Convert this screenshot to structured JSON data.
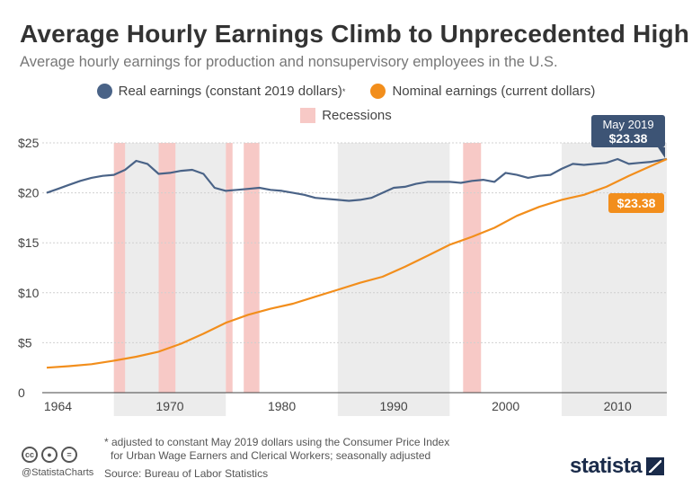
{
  "header": {
    "title": "Average Hourly Earnings Climb to Unprecedented High",
    "subtitle": "Average hourly earnings for production and nonsupervisory employees in the U.S."
  },
  "legend": {
    "real_label": "Real earnings (constant 2019 dollars)",
    "real_sup": "*",
    "nominal_label": "Nominal earnings (current dollars)",
    "recession_label": "Recessions"
  },
  "colors": {
    "real": "#4a6387",
    "nominal": "#f28e1c",
    "recession": "#f7c9c6",
    "band": "#ececec",
    "callout_real": "#3d5475",
    "callout_nominal": "#f28e1c"
  },
  "callouts": {
    "real_date": "May 2019",
    "real_value": "$23.38",
    "nominal_value": "$23.38"
  },
  "footer": {
    "note_line1": "* adjusted to constant May 2019 dollars using the Consumer Price Index",
    "note_line2": "for Urban Wage Earners and Clerical Workers; seasonally adjusted",
    "source": "Source: Bureau of Labor Statistics",
    "handle": "@StatistaCharts",
    "logo": "statista",
    "cc_icons": [
      "cc-icon",
      "by-icon",
      "nd-icon"
    ]
  },
  "chart_data": {
    "type": "line",
    "xlim": [
      1964,
      2019.4
    ],
    "ylim": [
      0,
      25
    ],
    "y_ticks": [
      0,
      5,
      10,
      15,
      20,
      25
    ],
    "y_tick_labels": [
      "0",
      "$5",
      "$10",
      "$15",
      "$20",
      "$25"
    ],
    "x_tick_labels": [
      "1964",
      "1970",
      "1980",
      "1990",
      "2000",
      "2010"
    ],
    "x_tick_positions": [
      1965,
      1975,
      1985,
      1995,
      2005,
      2015
    ],
    "decade_bands": [
      [
        1970,
        1980
      ],
      [
        1990,
        2000
      ],
      [
        2010,
        2019.4
      ]
    ],
    "recessions": [
      [
        1970,
        1971
      ],
      [
        1974,
        1975.5
      ],
      [
        1980,
        1980.6
      ],
      [
        1981.6,
        1983
      ],
      [
        2001.2,
        2002.8
      ]
    ],
    "series": [
      {
        "name": "Real earnings (constant 2019 dollars)",
        "x": [
          1964,
          1965,
          1966,
          1967,
          1968,
          1969,
          1970,
          1971,
          1972,
          1973,
          1974,
          1975,
          1976,
          1977,
          1978,
          1979,
          1980,
          1981,
          1982,
          1983,
          1984,
          1985,
          1986,
          1987,
          1988,
          1989,
          1990,
          1991,
          1992,
          1993,
          1994,
          1995,
          1996,
          1997,
          1998,
          2000,
          2001,
          2002,
          2003,
          2004,
          2005,
          2006,
          2007,
          2008,
          2009,
          2010,
          2011,
          2012,
          2013,
          2014,
          2015,
          2016,
          2017,
          2018,
          2019.4
        ],
        "y": [
          20.0,
          20.4,
          20.8,
          21.2,
          21.5,
          21.7,
          21.8,
          22.3,
          23.2,
          22.9,
          21.9,
          22.0,
          22.2,
          22.3,
          21.9,
          20.5,
          20.2,
          20.3,
          20.4,
          20.5,
          20.3,
          20.2,
          20.0,
          19.8,
          19.5,
          19.4,
          19.3,
          19.2,
          19.3,
          19.5,
          20.0,
          20.5,
          20.6,
          20.9,
          21.1,
          21.1,
          21.0,
          21.2,
          21.3,
          21.1,
          22.0,
          21.8,
          21.5,
          21.7,
          21.8,
          22.4,
          22.9,
          22.8,
          22.9,
          23.0,
          23.38,
          22.9,
          23.0,
          23.1,
          23.38
        ],
        "color": "#4a6387"
      },
      {
        "name": "Nominal earnings (current dollars)",
        "x": [
          1964,
          1966,
          1968,
          1970,
          1972,
          1974,
          1976,
          1978,
          1980,
          1982,
          1984,
          1986,
          1988,
          1990,
          1992,
          1994,
          1996,
          1998,
          2000,
          2002,
          2004,
          2006,
          2008,
          2010,
          2012,
          2014,
          2016,
          2018,
          2019.4
        ],
        "y": [
          2.5,
          2.65,
          2.85,
          3.2,
          3.6,
          4.1,
          4.9,
          5.9,
          7.0,
          7.8,
          8.4,
          8.9,
          9.6,
          10.3,
          11.0,
          11.6,
          12.6,
          13.7,
          14.8,
          15.6,
          16.5,
          17.7,
          18.6,
          19.3,
          19.8,
          20.6,
          21.7,
          22.7,
          23.38
        ],
        "color": "#f28e1c"
      }
    ],
    "legend": "top-center",
    "grid": true
  }
}
